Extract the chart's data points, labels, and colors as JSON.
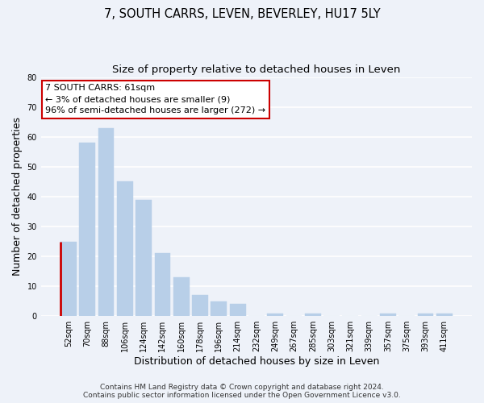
{
  "title": "7, SOUTH CARRS, LEVEN, BEVERLEY, HU17 5LY",
  "subtitle": "Size of property relative to detached houses in Leven",
  "xlabel": "Distribution of detached houses by size in Leven",
  "ylabel": "Number of detached properties",
  "categories": [
    "52sqm",
    "70sqm",
    "88sqm",
    "106sqm",
    "124sqm",
    "142sqm",
    "160sqm",
    "178sqm",
    "196sqm",
    "214sqm",
    "232sqm",
    "249sqm",
    "267sqm",
    "285sqm",
    "303sqm",
    "321sqm",
    "339sqm",
    "357sqm",
    "375sqm",
    "393sqm",
    "411sqm"
  ],
  "values": [
    25,
    58,
    63,
    45,
    39,
    21,
    13,
    7,
    5,
    4,
    0,
    1,
    0,
    1,
    0,
    0,
    0,
    1,
    0,
    1,
    1
  ],
  "bar_color": "#b8cfe8",
  "highlight_bar_index": 0,
  "highlight_left_edge_color": "#cc0000",
  "ylim": [
    0,
    80
  ],
  "yticks": [
    0,
    10,
    20,
    30,
    40,
    50,
    60,
    70,
    80
  ],
  "annotation_text": "7 SOUTH CARRS: 61sqm\n← 3% of detached houses are smaller (9)\n96% of semi-detached houses are larger (272) →",
  "annotation_box_facecolor": "#ffffff",
  "annotation_box_edgecolor": "#cc0000",
  "footer_line1": "Contains HM Land Registry data © Crown copyright and database right 2024.",
  "footer_line2": "Contains public sector information licensed under the Open Government Licence v3.0.",
  "bg_color": "#eef2f9",
  "grid_color": "#ffffff",
  "title_fontsize": 10.5,
  "subtitle_fontsize": 9.5,
  "tick_label_fontsize": 7,
  "axis_label_fontsize": 9,
  "footer_fontsize": 6.5,
  "annotation_fontsize": 8
}
